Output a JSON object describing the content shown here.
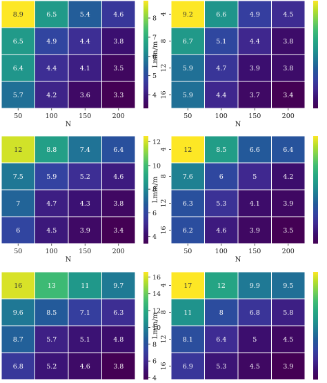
{
  "colormap": [
    "#440154",
    "#3b0f70",
    "#3f2a91",
    "#3342a1",
    "#23599a",
    "#1f7895",
    "#1f948c",
    "#26a882",
    "#3fbc73",
    "#75d054",
    "#b5de2b",
    "#fde725"
  ],
  "chart_data": [
    {
      "type": "heatmap",
      "x_categories": [
        "50",
        "100",
        "150",
        "200"
      ],
      "y_categories": [],
      "xlabel": "N",
      "ylabel": "",
      "values": [
        [
          8.9,
          6.5,
          5.4,
          4.6
        ],
        [
          6.5,
          4.9,
          4.4,
          3.8
        ],
        [
          6.4,
          4.4,
          4.1,
          3.5
        ],
        [
          5.7,
          4.2,
          3.6,
          3.3
        ]
      ],
      "cell_labels": [
        [
          "8.9",
          "6.5",
          "5.4",
          "4.6"
        ],
        [
          "6.5",
          "4.9",
          "4.4",
          "3.8"
        ],
        [
          "6.4",
          "4.4",
          "4.1",
          "3.5"
        ],
        [
          "5.7",
          "4.2",
          "3.6",
          "3.3"
        ]
      ],
      "colorbar": {
        "range": [
          3.3,
          8.9
        ],
        "ticks": [
          "4",
          "5",
          "6",
          "7",
          "8"
        ]
      }
    },
    {
      "type": "heatmap",
      "x_categories": [
        "50",
        "100",
        "150",
        "200"
      ],
      "y_categories": [
        "4",
        "8",
        "12",
        "16"
      ],
      "xlabel": "N",
      "ylabel": "Lmin/m",
      "values": [
        [
          9.2,
          6.6,
          4.9,
          4.5
        ],
        [
          6.7,
          5.1,
          4.4,
          3.8
        ],
        [
          5.9,
          4.7,
          3.9,
          3.8
        ],
        [
          5.9,
          4.4,
          3.7,
          3.4
        ]
      ],
      "cell_labels": [
        [
          "9.2",
          "6.6",
          "4.9",
          "4.5"
        ],
        [
          "6.7",
          "5.1",
          "4.4",
          "3.8"
        ],
        [
          "5.9",
          "4.7",
          "3.9",
          "3.8"
        ],
        [
          "5.9",
          "4.4",
          "3.7",
          "3.4"
        ]
      ],
      "colorbar": {
        "range": [
          3.4,
          9.2
        ],
        "ticks": []
      }
    },
    {
      "type": "heatmap",
      "x_categories": [
        "50",
        "100",
        "150",
        "200"
      ],
      "y_categories": [],
      "xlabel": "N",
      "ylabel": "",
      "values": [
        [
          12,
          8.8,
          7.4,
          6.4
        ],
        [
          7.5,
          5.9,
          5.2,
          4.6
        ],
        [
          7,
          4.7,
          4.3,
          3.8
        ],
        [
          6,
          4.5,
          3.9,
          3.4
        ]
      ],
      "cell_labels": [
        [
          "12",
          "8.8",
          "7.4",
          "6.4"
        ],
        [
          "7.5",
          "5.9",
          "5.2",
          "4.6"
        ],
        [
          "7",
          "4.7",
          "4.3",
          "3.8"
        ],
        [
          "6",
          "4.5",
          "3.9",
          "3.4"
        ]
      ],
      "colorbar": {
        "range": [
          3.4,
          12.5
        ],
        "ticks": [
          "4",
          "6",
          "8",
          "10",
          "12"
        ]
      }
    },
    {
      "type": "heatmap",
      "x_categories": [
        "50",
        "100",
        "150",
        "200"
      ],
      "y_categories": [
        "4",
        "8",
        "12",
        "16"
      ],
      "xlabel": "N",
      "ylabel": "Lmin/m",
      "values": [
        [
          12,
          8.5,
          6.6,
          6.4
        ],
        [
          7.6,
          6,
          5,
          4.2
        ],
        [
          6.3,
          5.3,
          4.1,
          3.9
        ],
        [
          6.2,
          4.6,
          3.9,
          3.5
        ]
      ],
      "cell_labels": [
        [
          "12",
          "8.5",
          "6.6",
          "6.4"
        ],
        [
          "7.6",
          "6",
          "5",
          "4.2"
        ],
        [
          "6.3",
          "5.3",
          "4.1",
          "3.9"
        ],
        [
          "6.2",
          "4.6",
          "3.9",
          "3.5"
        ]
      ],
      "colorbar": {
        "range": [
          3.5,
          12
        ],
        "ticks": []
      }
    },
    {
      "type": "heatmap",
      "x_categories": [],
      "y_categories": [],
      "xlabel": "",
      "ylabel": "",
      "values": [
        [
          16,
          13,
          11,
          9.7
        ],
        [
          9.6,
          8.5,
          7.1,
          6.3
        ],
        [
          8.7,
          5.7,
          5.1,
          4.8
        ],
        [
          6.8,
          5.2,
          4.6,
          3.8
        ]
      ],
      "cell_labels": [
        [
          "16",
          "13",
          "11",
          "9.7"
        ],
        [
          "9.6",
          "8.5",
          "7.1",
          "6.3"
        ],
        [
          "8.7",
          "5.7",
          "5.1",
          "4.8"
        ],
        [
          "6.8",
          "5.2",
          "4.6",
          "3.8"
        ]
      ],
      "colorbar": {
        "range": [
          3.8,
          16.6
        ],
        "ticks": [
          "4",
          "6",
          "8",
          "10",
          "12",
          "14",
          "16"
        ]
      }
    },
    {
      "type": "heatmap",
      "x_categories": [],
      "y_categories": [
        "4",
        "8",
        "12",
        "16"
      ],
      "xlabel": "",
      "ylabel": "Lmin/m",
      "values": [
        [
          17,
          12,
          9.9,
          9.5
        ],
        [
          11,
          8,
          6.8,
          5.8
        ],
        [
          8.1,
          6.4,
          5,
          4.5
        ],
        [
          6.9,
          5.3,
          4.5,
          3.9
        ]
      ],
      "cell_labels": [
        [
          "17",
          "12",
          "9.9",
          "9.5"
        ],
        [
          "11",
          "8",
          "6.8",
          "5.8"
        ],
        [
          "8.1",
          "6.4",
          "5",
          "4.5"
        ],
        [
          "6.9",
          "5.3",
          "4.5",
          "3.9"
        ]
      ],
      "colorbar": {
        "range": [
          3.9,
          17
        ],
        "ticks": []
      }
    }
  ]
}
